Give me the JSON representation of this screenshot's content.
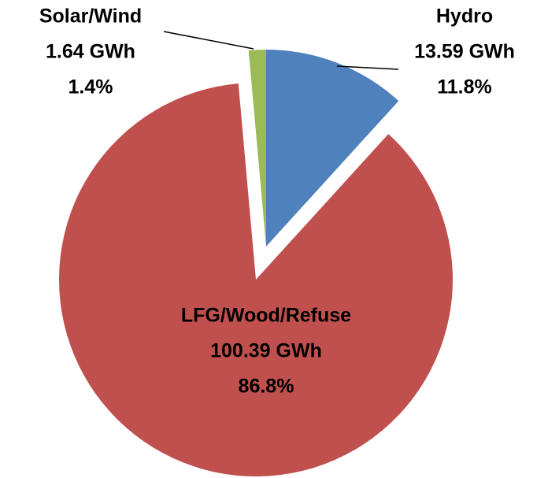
{
  "chart_data": {
    "type": "pie",
    "categories": [
      "Hydro",
      "LFG/Wood/Refuse",
      "Solar/Wind"
    ],
    "values": [
      13.59,
      100.39,
      1.64
    ],
    "value_labels": [
      "13.59 GWh",
      "100.39 GWh",
      "1.64 GWh"
    ],
    "percents": [
      11.8,
      86.8,
      1.4
    ],
    "percent_labels": [
      "11.8%",
      "86.8%",
      "1.4%"
    ],
    "colors": [
      "#4f81bd",
      "#c0504d",
      "#9bbb59"
    ]
  }
}
